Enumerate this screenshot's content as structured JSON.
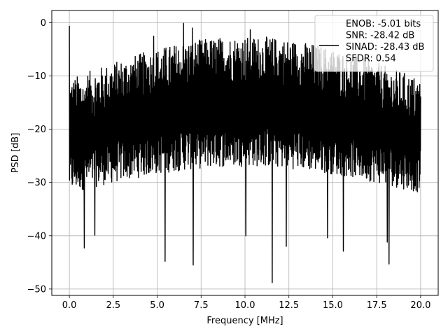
{
  "chart_data": {
    "type": "line",
    "title": "",
    "xlabel": "Frequency [MHz]",
    "ylabel": "PSD [dB]",
    "xlim": [
      -1.0,
      21.0
    ],
    "ylim": [
      -51.2,
      2.3
    ],
    "xticks": [
      0.0,
      2.5,
      5.0,
      7.5,
      10.0,
      12.5,
      15.0,
      17.5,
      20.0
    ],
    "xtick_labels": [
      "0.0",
      "2.5",
      "5.0",
      "7.5",
      "10.0",
      "12.5",
      "15.0",
      "17.5",
      "20.0"
    ],
    "yticks": [
      0,
      -10,
      -20,
      -30,
      -40,
      -50
    ],
    "ytick_labels": [
      "0",
      "−10",
      "−20",
      "−30",
      "−40",
      "−50"
    ],
    "grid": true,
    "legend": {
      "placement": "top-right",
      "entries": [
        "ENOB: -5.01 bits",
        "SNR: -28.42 dB",
        "SINAD: -28.43 dB",
        "SFDR: 0.54"
      ]
    },
    "series": [
      {
        "color": "#000000",
        "envelope": {
          "x_range": [
            0.0,
            20.0
          ],
          "upper_typical": [
            -5,
            -15
          ],
          "lower_typical": [
            -20,
            -30
          ],
          "max_points": [
            [
              0.0,
              -0.6
            ],
            [
              6.5,
              -0.1
            ],
            [
              7.0,
              -1.0
            ],
            [
              10.3,
              -1.3
            ],
            [
              4.8,
              -2.5
            ]
          ],
          "min_points": [
            [
              0.85,
              -42.3
            ],
            [
              1.45,
              -39.9
            ],
            [
              5.45,
              -44.8
            ],
            [
              7.05,
              -45.5
            ],
            [
              10.05,
              -40.0
            ],
            [
              11.55,
              -48.8
            ],
            [
              12.35,
              -42.0
            ],
            [
              14.7,
              -40.4
            ],
            [
              15.6,
              -42.9
            ],
            [
              18.2,
              -45.3
            ],
            [
              18.1,
              -41.2
            ]
          ]
        }
      }
    ]
  }
}
